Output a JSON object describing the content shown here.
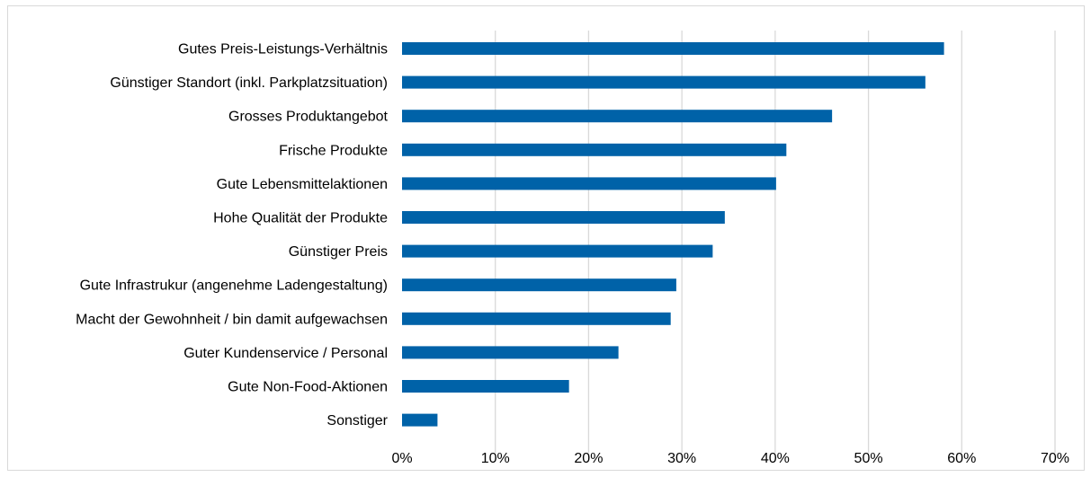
{
  "chart_data": {
    "type": "bar",
    "orientation": "horizontal",
    "categories": [
      "Gutes Preis-Leistungs-Verhältnis",
      "Günstiger Standort (inkl. Parkplatzsituation)",
      "Grosses Produktangebot",
      "Frische Produkte",
      "Gute Lebensmittelaktionen",
      "Hohe Qualität der Produkte",
      "Günstiger Preis",
      "Gute Infrastrukur (angenehme Ladengestaltung)",
      "Macht der Gewohnheit / bin damit aufgewachsen",
      "Guter Kundenservice / Personal",
      "Gute Non-Food-Aktionen",
      "Sonstiger"
    ],
    "values": [
      58.1,
      56.1,
      46.1,
      41.2,
      40.1,
      34.6,
      33.3,
      29.4,
      28.8,
      23.2,
      17.9,
      3.8
    ],
    "unit": "%",
    "xlim": [
      0,
      70
    ],
    "xticks": [
      0,
      10,
      20,
      30,
      40,
      50,
      60,
      70
    ],
    "tick_labels": [
      "0%",
      "10%",
      "20%",
      "30%",
      "40%",
      "50%",
      "60%",
      "70%"
    ],
    "title": "",
    "xlabel": "",
    "ylabel": "",
    "grid": "vertical",
    "legend": "none",
    "bar_color": "#0062A8"
  }
}
